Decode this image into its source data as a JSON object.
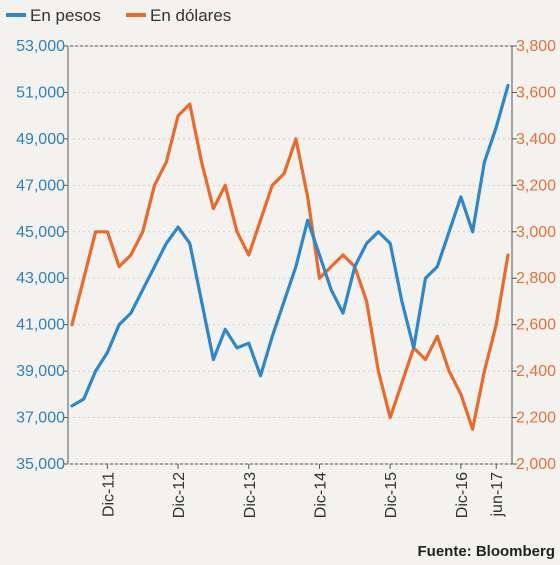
{
  "chart_data": {
    "type": "line",
    "title": "",
    "source": "Fuente: Bloomberg",
    "legend": {
      "placement": "top-left"
    },
    "x_ticks": [
      "Dic-11",
      "Dic-12",
      "Dic-13",
      "Dic-14",
      "Dic-15",
      "Dic-16",
      "jun-17"
    ],
    "y_left": {
      "ylim": [
        35000,
        53000
      ],
      "ticks": [
        35000,
        37000,
        39000,
        41000,
        43000,
        45000,
        47000,
        49000,
        51000,
        53000
      ],
      "tick_labels": [
        "35,000",
        "37,000",
        "39,000",
        "41,000",
        "43,000",
        "45,000",
        "47,000",
        "49,000",
        "51,000",
        "53,000"
      ]
    },
    "y_right": {
      "ylim": [
        2000,
        3800
      ],
      "ticks": [
        2000,
        2200,
        2400,
        2600,
        2800,
        3000,
        3200,
        3400,
        3600,
        3800
      ],
      "tick_labels": [
        "2,000",
        "2,200",
        "2,400",
        "2,600",
        "2,800",
        "3,000",
        "3,200",
        "3,400",
        "3,600",
        "3,800"
      ]
    },
    "x": [
      "2011-06",
      "2011-08",
      "2011-10",
      "2011-12",
      "2012-02",
      "2012-04",
      "2012-06",
      "2012-08",
      "2012-10",
      "2012-12",
      "2013-02",
      "2013-04",
      "2013-06",
      "2013-08",
      "2013-10",
      "2013-12",
      "2014-02",
      "2014-04",
      "2014-06",
      "2014-08",
      "2014-10",
      "2014-12",
      "2015-02",
      "2015-04",
      "2015-06",
      "2015-08",
      "2015-10",
      "2015-12",
      "2016-02",
      "2016-04",
      "2016-06",
      "2016-08",
      "2016-10",
      "2016-12",
      "2017-02",
      "2017-04",
      "2017-06",
      "2017-07"
    ],
    "series": [
      {
        "name": "En pesos",
        "axis": "left",
        "color": "#2f86c8",
        "values": [
          37500,
          37800,
          39000,
          39800,
          41000,
          41500,
          42500,
          43500,
          44500,
          45200,
          44500,
          42000,
          39500,
          40800,
          40000,
          40200,
          38800,
          40500,
          42000,
          43500,
          45500,
          44000,
          42500,
          41500,
          43500,
          44500,
          45000,
          44500,
          42000,
          40000,
          43000,
          43500,
          45000,
          46500,
          45000,
          48000,
          49500,
          51300
        ]
      },
      {
        "name": "En dólares",
        "axis": "right",
        "color": "#ea6a2c",
        "values": [
          2600,
          2800,
          3000,
          3000,
          2850,
          2900,
          3000,
          3200,
          3300,
          3500,
          3550,
          3300,
          3100,
          3200,
          3000,
          2900,
          3050,
          3200,
          3250,
          3400,
          3150,
          2800,
          2850,
          2900,
          2850,
          2700,
          2400,
          2200,
          2350,
          2500,
          2450,
          2550,
          2400,
          2300,
          2150,
          2400,
          2600,
          2900
        ]
      }
    ]
  }
}
